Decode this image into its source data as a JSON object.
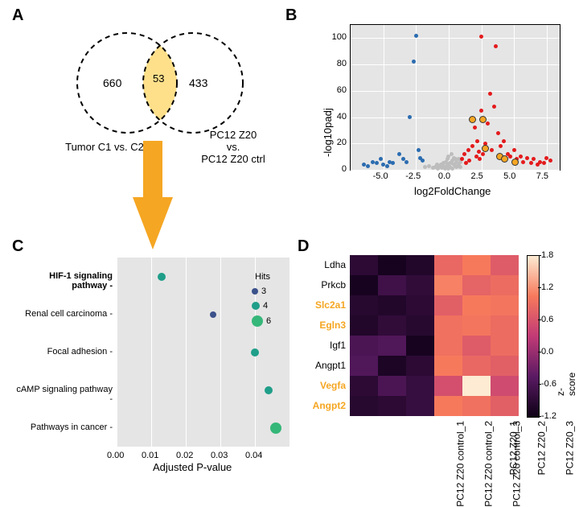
{
  "panelLabels": {
    "A": "A",
    "B": "B",
    "C": "C",
    "D": "D"
  },
  "A": {
    "left": {
      "count": "660",
      "label_lines": [
        "Tumor C1 vs. C2"
      ]
    },
    "overlap": "53",
    "right": {
      "count": "433",
      "label_lines": [
        "PC12 Z20",
        "vs.",
        "PC12 Z20 ctrl"
      ]
    },
    "arrow_color": "#f5a623",
    "circle": {
      "r": 62,
      "stroke": "#000000",
      "fill": "#ffffff"
    },
    "overlap_fill": "#fee08b"
  },
  "B": {
    "bg": "#e5e5e5",
    "grid_color": "#ffffff",
    "xlabel": "log2FoldChange",
    "ylabel": "-log10padj",
    "xlim": [
      -7.5,
      8.5
    ],
    "ylim": [
      0,
      110
    ],
    "xticks": [
      -5.0,
      -2.5,
      0.0,
      2.5,
      5.0,
      7.5
    ],
    "yticks": [
      0,
      20,
      40,
      60,
      80,
      100
    ],
    "colors": {
      "up": "#e41a1c",
      "down": "#2b6cb0",
      "ns": "#bdbdbd",
      "hi": "#f5a623"
    },
    "dot_r": 2.5,
    "points": {
      "down": [
        [
          -6.5,
          4
        ],
        [
          -6.2,
          3
        ],
        [
          -5.8,
          6
        ],
        [
          -5.5,
          5
        ],
        [
          -5.2,
          8
        ],
        [
          -5.0,
          4
        ],
        [
          -4.7,
          3
        ],
        [
          -4.5,
          6
        ],
        [
          -4.3,
          5
        ],
        [
          -3.8,
          12
        ],
        [
          -3.5,
          8
        ],
        [
          -3.2,
          6
        ],
        [
          -3.0,
          40
        ],
        [
          -2.7,
          82
        ],
        [
          -2.5,
          102
        ],
        [
          -2.3,
          15
        ],
        [
          -2.2,
          9
        ],
        [
          -2.0,
          7
        ]
      ],
      "up": [
        [
          1.0,
          8
        ],
        [
          1.2,
          12
        ],
        [
          1.3,
          5
        ],
        [
          1.5,
          15
        ],
        [
          1.6,
          7
        ],
        [
          1.8,
          18
        ],
        [
          2.0,
          32
        ],
        [
          2.1,
          10
        ],
        [
          2.2,
          22
        ],
        [
          2.3,
          14
        ],
        [
          2.4,
          8
        ],
        [
          2.5,
          45
        ],
        [
          2.5,
          101
        ],
        [
          2.6,
          12
        ],
        [
          2.8,
          20
        ],
        [
          3.0,
          35
        ],
        [
          3.2,
          58
        ],
        [
          3.3,
          15
        ],
        [
          3.5,
          48
        ],
        [
          3.6,
          94
        ],
        [
          3.8,
          28
        ],
        [
          4.0,
          18
        ],
        [
          4.2,
          22
        ],
        [
          4.5,
          12
        ],
        [
          4.7,
          10
        ],
        [
          5.0,
          15
        ],
        [
          5.2,
          8
        ],
        [
          5.5,
          10
        ],
        [
          5.7,
          6
        ],
        [
          6.0,
          9
        ],
        [
          6.3,
          5
        ],
        [
          6.5,
          8
        ],
        [
          6.8,
          4
        ],
        [
          7.0,
          6
        ],
        [
          7.3,
          5
        ],
        [
          7.5,
          9
        ],
        [
          7.8,
          7
        ]
      ],
      "hi": [
        [
          1.8,
          38
        ],
        [
          2.6,
          38
        ],
        [
          2.8,
          16
        ],
        [
          3.9,
          10
        ],
        [
          4.3,
          8
        ],
        [
          5.1,
          6
        ]
      ],
      "ns": [
        [
          -1.8,
          2
        ],
        [
          -1.5,
          3
        ],
        [
          -1.2,
          1.5
        ],
        [
          -1.0,
          2
        ],
        [
          -0.9,
          4
        ],
        [
          -0.8,
          1
        ],
        [
          -0.7,
          3
        ],
        [
          -0.6,
          2
        ],
        [
          -0.5,
          1.5
        ],
        [
          -0.4,
          3
        ],
        [
          -0.3,
          1
        ],
        [
          -0.2,
          2
        ],
        [
          -0.1,
          4
        ],
        [
          0.0,
          3
        ],
        [
          0.1,
          2
        ],
        [
          0.2,
          5
        ],
        [
          0.3,
          1
        ],
        [
          0.4,
          4
        ],
        [
          0.5,
          3
        ],
        [
          0.6,
          2
        ],
        [
          0.7,
          3
        ],
        [
          0.8,
          4
        ],
        [
          0.9,
          2
        ],
        [
          0.0,
          1
        ],
        [
          -0.2,
          6
        ],
        [
          0.3,
          7
        ],
        [
          0.4,
          9
        ],
        [
          0.5,
          8
        ],
        [
          0.6,
          6
        ],
        [
          -0.1,
          8
        ],
        [
          0.0,
          10
        ],
        [
          0.2,
          12
        ],
        [
          0.8,
          8
        ],
        [
          0.9,
          6
        ],
        [
          0.1,
          5
        ],
        [
          -0.4,
          5
        ],
        [
          -0.6,
          4
        ],
        [
          -0.8,
          3
        ]
      ]
    }
  },
  "C": {
    "bg": "#e5e5e5",
    "grid_color": "#ffffff",
    "xlabel": "Adjusted P-value",
    "xlim": [
      0.0,
      0.05
    ],
    "xticks": [
      0.0,
      0.01,
      0.02,
      0.03,
      0.04
    ],
    "pathways": [
      {
        "name": "HIF-1 signaling pathway",
        "bold": true,
        "x": 0.013,
        "hits": 4
      },
      {
        "name": "Renal cell carcinoma",
        "bold": false,
        "x": 0.028,
        "hits": 3
      },
      {
        "name": "Focal adhesion",
        "bold": false,
        "x": 0.04,
        "hits": 4
      },
      {
        "name": "cAMP signaling pathway",
        "bold": false,
        "x": 0.044,
        "hits": 4
      },
      {
        "name": "Pathways in cancer",
        "bold": false,
        "x": 0.046,
        "hits": 6
      }
    ],
    "legend": {
      "title": "Hits",
      "items": [
        {
          "v": 3,
          "size": 8,
          "color": "#3b528b"
        },
        {
          "v": 4,
          "size": 10,
          "color": "#1f9e89"
        },
        {
          "v": 6,
          "size": 14,
          "color": "#35b779"
        }
      ]
    },
    "color_by_hits": {
      "3": "#3b528b",
      "4": "#1f9e89",
      "6": "#35b779"
    },
    "size_by_hits": {
      "3": 8,
      "4": 10,
      "6": 14
    }
  },
  "D": {
    "genes": [
      {
        "name": "Ldha",
        "hi": false
      },
      {
        "name": "Prkcb",
        "hi": false
      },
      {
        "name": "Slc2a1",
        "hi": true
      },
      {
        "name": "Egln3",
        "hi": true
      },
      {
        "name": "Igf1",
        "hi": false
      },
      {
        "name": "Angpt1",
        "hi": false
      },
      {
        "name": "Vegfa",
        "hi": true
      },
      {
        "name": "Angpt2",
        "hi": true
      }
    ],
    "samples": [
      "PC12 Z20 control_1",
      "PC12 Z20 control_2",
      "PC12 Z20 control_3",
      "PC12 Z20_1",
      "PC12 Z20_2",
      "PC12 Z20_3"
    ],
    "highlight_color": "#f5a623",
    "matrix": [
      [
        -0.9,
        -1.1,
        -1.0,
        0.85,
        1.05,
        0.7
      ],
      [
        -1.1,
        -0.7,
        -0.85,
        1.1,
        0.8,
        0.9
      ],
      [
        -0.95,
        -1.0,
        -0.9,
        0.75,
        1.05,
        1.0
      ],
      [
        -1.0,
        -0.85,
        -0.95,
        0.95,
        1.0,
        0.9
      ],
      [
        -0.6,
        -0.55,
        -1.1,
        0.95,
        0.7,
        0.9
      ],
      [
        -0.55,
        -1.05,
        -0.9,
        1.05,
        0.85,
        0.75
      ],
      [
        -0.9,
        -0.6,
        -0.8,
        0.55,
        1.8,
        0.5
      ],
      [
        -0.95,
        -0.9,
        -0.8,
        1.05,
        0.95,
        0.75
      ]
    ],
    "cbar": {
      "min": -1.2,
      "max": 1.8,
      "ticks": [
        -1.2,
        -0.6,
        0.0,
        0.6,
        1.2,
        1.8
      ],
      "label": "z-score FPKM"
    },
    "cmap_stops": [
      {
        "t": 0.0,
        "c": "#0d0015"
      },
      {
        "t": 0.25,
        "c": "#5a1a63"
      },
      {
        "t": 0.5,
        "c": "#c13a76"
      },
      {
        "t": 0.75,
        "c": "#f7795c"
      },
      {
        "t": 1.0,
        "c": "#fdebd3"
      }
    ]
  }
}
